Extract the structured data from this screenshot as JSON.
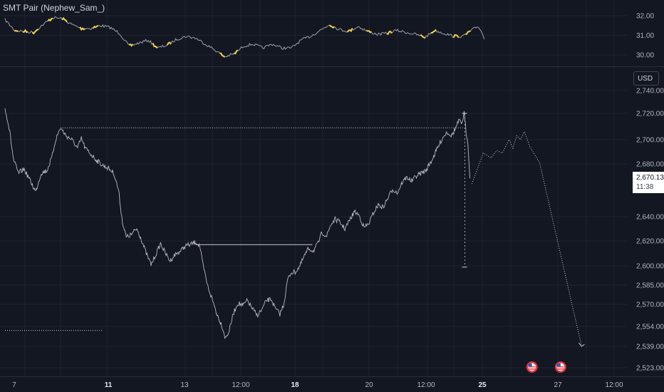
{
  "indicator": {
    "title": "SMT Pair (Nephew_Sam_)"
  },
  "currency_button": "USD",
  "last_price": {
    "price": "2,670.13",
    "countdown": "11:38"
  },
  "colors": {
    "background": "#131722",
    "grid": "#1f2330",
    "price_line": "#b7b9c1",
    "indicator_line": "#9ea1ab",
    "smt_highlight": "#f5d547",
    "level_line": "#c9cbd2",
    "event_flag_outer": "#e0323c",
    "event_flag_inner": "#2a5cbe"
  },
  "chart_data": [
    {
      "type": "line",
      "name": "indicator-pane",
      "y_ticks": [
        "32.00",
        "31.00",
        "30.00"
      ],
      "ylim": [
        29.7,
        32.4
      ],
      "anchors": [
        [
          0.0,
          31.8
        ],
        [
          0.5,
          31.25
        ],
        [
          1.0,
          31.2
        ],
        [
          1.5,
          31.15
        ],
        [
          2.0,
          31.55
        ],
        [
          2.5,
          31.9
        ],
        [
          3.0,
          31.85
        ],
        [
          3.5,
          31.55
        ],
        [
          4.0,
          31.35
        ],
        [
          4.5,
          31.35
        ],
        [
          5.0,
          31.5
        ],
        [
          5.5,
          31.4
        ],
        [
          6.0,
          31.1
        ],
        [
          6.5,
          30.45
        ],
        [
          7.0,
          30.6
        ],
        [
          7.5,
          30.75
        ],
        [
          8.0,
          30.35
        ],
        [
          8.5,
          30.5
        ],
        [
          9.0,
          30.8
        ],
        [
          9.5,
          30.95
        ],
        [
          10.0,
          30.85
        ],
        [
          10.5,
          30.55
        ],
        [
          11.0,
          30.25
        ],
        [
          11.5,
          29.9
        ],
        [
          12.0,
          30.05
        ],
        [
          12.5,
          30.45
        ],
        [
          13.0,
          30.55
        ],
        [
          13.5,
          30.35
        ],
        [
          14.0,
          30.55
        ],
        [
          14.5,
          30.35
        ],
        [
          15.0,
          30.35
        ],
        [
          15.5,
          30.75
        ],
        [
          16.0,
          30.95
        ],
        [
          16.5,
          31.25
        ],
        [
          17.0,
          31.55
        ],
        [
          17.5,
          31.3
        ],
        [
          18.0,
          31.2
        ],
        [
          18.5,
          31.45
        ],
        [
          19.0,
          31.2
        ],
        [
          19.5,
          31.05
        ],
        [
          20.0,
          31.1
        ],
        [
          20.5,
          31.25
        ],
        [
          21.0,
          31.15
        ],
        [
          21.5,
          31.05
        ],
        [
          22.0,
          30.9
        ],
        [
          22.5,
          31.25
        ],
        [
          23.0,
          31.1
        ],
        [
          23.5,
          30.95
        ],
        [
          24.0,
          30.95
        ],
        [
          24.5,
          31.3
        ],
        [
          24.8,
          31.45
        ],
        [
          25.0,
          31.1
        ],
        [
          25.1,
          30.8
        ]
      ],
      "highlight_segments": [
        [
          0.5,
          0.7
        ],
        [
          0.9,
          1.2
        ],
        [
          1.4,
          1.8
        ],
        [
          2.2,
          2.5
        ],
        [
          3.0,
          3.3
        ],
        [
          3.9,
          4.2
        ],
        [
          4.6,
          4.9
        ],
        [
          6.5,
          6.7
        ],
        [
          7.7,
          8.0
        ],
        [
          8.5,
          8.7
        ],
        [
          11.2,
          11.5
        ],
        [
          12.0,
          12.2
        ],
        [
          17.0,
          17.3
        ],
        [
          17.9,
          18.2
        ],
        [
          18.9,
          19.2
        ],
        [
          20.0,
          20.3
        ],
        [
          21.7,
          22.0
        ],
        [
          22.3,
          22.6
        ],
        [
          23.5,
          23.8
        ],
        [
          24.1,
          24.4
        ]
      ]
    },
    {
      "type": "line",
      "name": "price-pane",
      "currency": "USD",
      "y_ticks": [
        "2,740.00",
        "2,720.00",
        "2,700.00",
        "2,680.00",
        "2,640.00",
        "2,620.00",
        "2,600.00",
        "2,585.00",
        "2,570.00",
        "2,554.00",
        "2,539.00",
        "2,523.00"
      ],
      "x_ticks": [
        "7",
        "11",
        "13",
        "12:00",
        "18",
        "20",
        "12:00",
        "25",
        "27",
        "12:00"
      ],
      "bold_x_ticks": [
        "11",
        "18",
        "25"
      ],
      "series": [
        {
          "anchors": [
            [
              0.0,
              2725
            ],
            [
              0.25,
              2706
            ],
            [
              0.45,
              2683
            ],
            [
              0.7,
              2673
            ],
            [
              1.0,
              2676
            ],
            [
              1.3,
              2668
            ],
            [
              1.6,
              2659
            ],
            [
              1.9,
              2673
            ],
            [
              2.2,
              2675
            ],
            [
              2.45,
              2685
            ],
            [
              2.65,
              2700
            ],
            [
              2.9,
              2709
            ],
            [
              3.2,
              2703
            ],
            [
              3.5,
              2700
            ],
            [
              3.8,
              2693
            ],
            [
              4.0,
              2701
            ],
            [
              4.2,
              2693
            ],
            [
              4.5,
              2688
            ],
            [
              4.8,
              2683
            ],
            [
              5.1,
              2679
            ],
            [
              5.4,
              2677
            ],
            [
              5.7,
              2673
            ],
            [
              5.95,
              2660
            ],
            [
              6.15,
              2636
            ],
            [
              6.35,
              2623
            ],
            [
              6.6,
              2625
            ],
            [
              6.9,
              2630
            ],
            [
              7.1,
              2623
            ],
            [
              7.4,
              2610
            ],
            [
              7.65,
              2601
            ],
            [
              7.9,
              2609
            ],
            [
              8.15,
              2618
            ],
            [
              8.4,
              2610
            ],
            [
              8.65,
              2604
            ],
            [
              8.9,
              2609
            ],
            [
              9.2,
              2612
            ],
            [
              9.45,
              2616
            ],
            [
              9.7,
              2617
            ],
            [
              10.0,
              2619
            ],
            [
              10.2,
              2616
            ],
            [
              10.35,
              2602
            ],
            [
              10.6,
              2585
            ],
            [
              10.85,
              2574
            ],
            [
              11.1,
              2563
            ],
            [
              11.35,
              2555
            ],
            [
              11.55,
              2545
            ],
            [
              11.75,
              2551
            ],
            [
              11.95,
              2563
            ],
            [
              12.2,
              2571
            ],
            [
              12.45,
              2569
            ],
            [
              12.7,
              2573
            ],
            [
              12.95,
              2567
            ],
            [
              13.2,
              2562
            ],
            [
              13.45,
              2566
            ],
            [
              13.7,
              2573
            ],
            [
              13.95,
              2574
            ],
            [
              14.15,
              2567
            ],
            [
              14.4,
              2563
            ],
            [
              14.6,
              2570
            ],
            [
              14.8,
              2589
            ],
            [
              15.0,
              2595
            ],
            [
              15.2,
              2595
            ],
            [
              15.45,
              2600
            ],
            [
              15.65,
              2607
            ],
            [
              15.9,
              2614
            ],
            [
              16.15,
              2612
            ],
            [
              16.4,
              2618
            ],
            [
              16.6,
              2627
            ],
            [
              16.85,
              2624
            ],
            [
              17.05,
              2633
            ],
            [
              17.3,
              2638
            ],
            [
              17.55,
              2635
            ],
            [
              17.8,
              2630
            ],
            [
              18.05,
              2637
            ],
            [
              18.3,
              2644
            ],
            [
              18.55,
              2641
            ],
            [
              18.8,
              2631
            ],
            [
              19.05,
              2634
            ],
            [
              19.3,
              2643
            ],
            [
              19.55,
              2649
            ],
            [
              19.8,
              2647
            ],
            [
              20.05,
              2654
            ],
            [
              20.3,
              2661
            ],
            [
              20.55,
              2658
            ],
            [
              20.8,
              2666
            ],
            [
              21.05,
              2670
            ],
            [
              21.3,
              2667
            ],
            [
              21.55,
              2671
            ],
            [
              21.8,
              2673
            ],
            [
              22.05,
              2675
            ],
            [
              22.35,
              2683
            ],
            [
              22.65,
              2693
            ],
            [
              22.9,
              2701
            ],
            [
              23.15,
              2706
            ],
            [
              23.4,
              2703
            ],
            [
              23.6,
              2709
            ],
            [
              23.8,
              2715
            ],
            [
              23.9,
              2711
            ],
            [
              24.0,
              2717
            ],
            [
              24.05,
              2720
            ],
            [
              24.15,
              2706
            ],
            [
              24.25,
              2697
            ],
            [
              24.35,
              2669
            ]
          ]
        }
      ],
      "ylim": [
        2518,
        2745
      ],
      "xlim": [
        0,
        32.8
      ],
      "levels": [
        {
          "price": 2709,
          "from": 2.9,
          "to": 24.05,
          "style": "dotted"
        },
        {
          "price": 2617,
          "from": 10.0,
          "to": 16.1,
          "style": "solid"
        },
        {
          "price": 2551,
          "from": 0.0,
          "to": 5.1,
          "style": "dotted"
        }
      ],
      "projection": [
        [
          24.45,
          2665
        ],
        [
          25.05,
          2689
        ],
        [
          25.45,
          2685
        ],
        [
          25.75,
          2691
        ],
        [
          26.05,
          2689
        ],
        [
          26.4,
          2700
        ],
        [
          26.6,
          2693
        ],
        [
          26.8,
          2703
        ],
        [
          27.0,
          2700
        ],
        [
          27.2,
          2706
        ],
        [
          27.5,
          2694
        ],
        [
          28.0,
          2681
        ],
        [
          30.2,
          2539
        ]
      ],
      "current_candle": {
        "x": 24.05,
        "high": 2720,
        "low": 2599
      },
      "event_markers_x": [
        27.6,
        29.1
      ],
      "grid": true
    }
  ]
}
